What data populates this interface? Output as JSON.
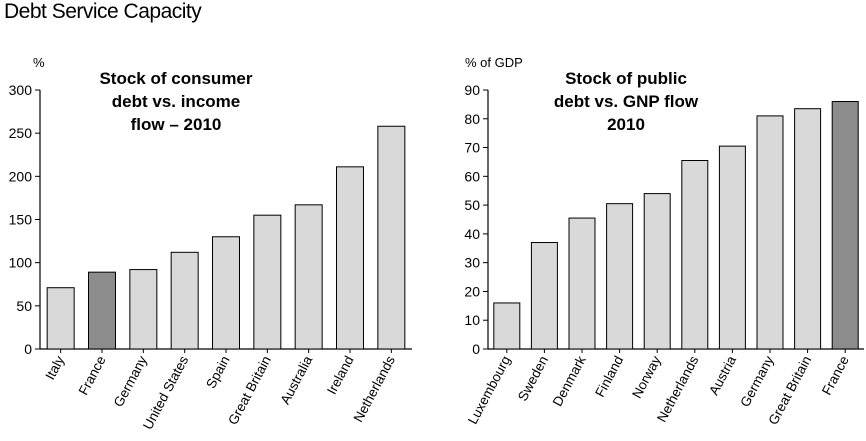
{
  "page_title": "Debt Service Capacity",
  "chart_data": [
    {
      "type": "bar",
      "title_lines": [
        "Stock of consumer",
        "debt vs. income",
        "flow – 2010"
      ],
      "unit_label": "%",
      "ylim": [
        0,
        300
      ],
      "yticks": [
        0,
        50,
        100,
        150,
        200,
        250,
        300
      ],
      "categories": [
        "Italy",
        "France",
        "Germany",
        "United States",
        "Spain",
        "Great Britain",
        "Australia",
        "Ireland",
        "Netherlands"
      ],
      "values": [
        71,
        89,
        92,
        112,
        130,
        155,
        167,
        211,
        258
      ],
      "highlight": "France",
      "colors": {
        "bar": "#d9d9d9",
        "highlight": "#8c8c8c",
        "stroke": "#000000"
      }
    },
    {
      "type": "bar",
      "title_lines": [
        "Stock of public",
        "debt vs. GNP flow",
        "2010"
      ],
      "unit_label": "% of GDP",
      "ylim": [
        0,
        90
      ],
      "yticks": [
        0,
        10,
        20,
        30,
        40,
        50,
        60,
        70,
        80,
        90
      ],
      "categories": [
        "Luxembourg",
        "Sweden",
        "Denmark",
        "Finland",
        "Norway",
        "Netherlands",
        "Austria",
        "Germany",
        "Great Britain",
        "France"
      ],
      "values": [
        16,
        37,
        45.5,
        50.5,
        54,
        65.5,
        70.5,
        81,
        83.5,
        86
      ],
      "highlight": "France",
      "colors": {
        "bar": "#d9d9d9",
        "highlight": "#8c8c8c",
        "stroke": "#000000"
      }
    }
  ]
}
